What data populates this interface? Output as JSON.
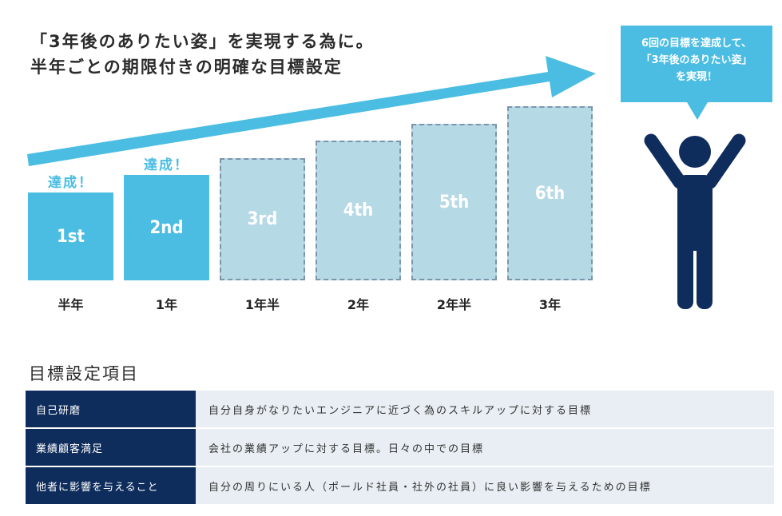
{
  "heading": {
    "line1": "「3年後のありたい姿」を実現する為に。",
    "line2": "半年ごとの期限付きの明確な目標設定"
  },
  "steps": [
    {
      "label": "1st",
      "period": "半年",
      "achieved": true,
      "badge": "達成！"
    },
    {
      "label": "2nd",
      "period": "1年",
      "achieved": true,
      "badge": "達成！"
    },
    {
      "label": "3rd",
      "period": "1年半",
      "achieved": false,
      "badge": ""
    },
    {
      "label": "4th",
      "period": "2年",
      "achieved": false,
      "badge": ""
    },
    {
      "label": "5th",
      "period": "2年半",
      "achieved": false,
      "badge": ""
    },
    {
      "label": "6th",
      "period": "3年",
      "achieved": false,
      "badge": ""
    }
  ],
  "bubble": {
    "line1": "6回の目標を達成して、",
    "line2": "「3年後のありたい姿」",
    "line3": "を実現！"
  },
  "section_title": "目標設定項目",
  "table_rows": [
    {
      "label": "自己研磨",
      "desc": "自分自身がなりたいエンジニアに近づく為のスキルアップに対する目標"
    },
    {
      "label": "業績顧客満足",
      "desc": "会社の業績アップに対する目標。日々の中での目標"
    },
    {
      "label": "他者に影響を与えること",
      "desc": "自分の周りにいる人（ポールド社員・社外の社員）に良い影響を与えるための目標"
    }
  ],
  "colors": {
    "accent": "#4bbde2",
    "pending": "#b6d9e6",
    "navy": "#0f2d5c",
    "row_bg": "#e8eef3"
  }
}
